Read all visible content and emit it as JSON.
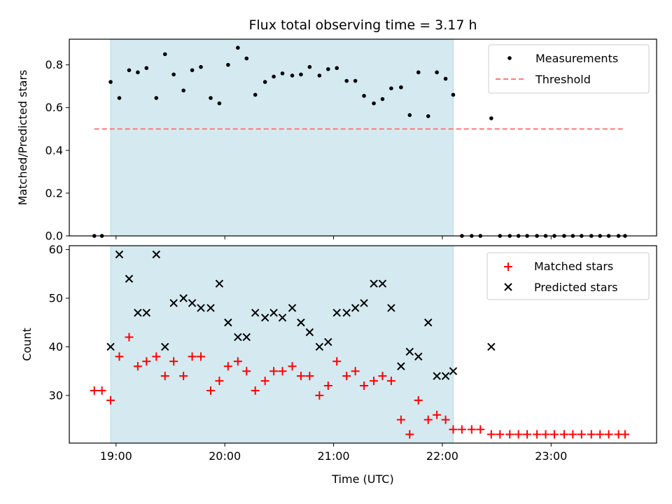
{
  "chart_data": {
    "type": "scatter",
    "title": "Flux total observing time = 3.17 h",
    "xlabel": "Time (UTC)",
    "x_ticks": [
      "19:00",
      "20:00",
      "21:00",
      "22:00",
      "23:00"
    ],
    "x_tick_hours": [
      19,
      20,
      21,
      22,
      23
    ],
    "xlim": [
      18.57,
      23.97
    ],
    "observing_window": [
      18.95,
      22.1
    ],
    "observing_window_color": "#d4eaf0",
    "panels": [
      {
        "ylabel": "Matched/Predicted stars",
        "ylim": [
          0.0,
          0.92
        ],
        "yticks": [
          0.0,
          0.2,
          0.4,
          0.6,
          0.8
        ],
        "ytick_labels": [
          "0.0",
          "0.2",
          "0.4",
          "0.6",
          "0.8"
        ],
        "legend_position": "upper right",
        "threshold": {
          "name": "Threshold",
          "value": 0.5,
          "x_range": [
            18.8,
            23.67
          ],
          "color": "#ff7a7a",
          "style": "dashed"
        },
        "series": [
          {
            "name": "Measurements",
            "marker": "dot",
            "color": "#000000",
            "x": [
              18.8,
              18.87,
              18.95,
              19.03,
              19.12,
              19.2,
              19.28,
              19.37,
              19.45,
              19.53,
              19.62,
              19.7,
              19.78,
              19.87,
              19.95,
              20.03,
              20.12,
              20.2,
              20.28,
              20.37,
              20.45,
              20.53,
              20.62,
              20.7,
              20.78,
              20.87,
              20.95,
              21.03,
              21.12,
              21.2,
              21.28,
              21.37,
              21.45,
              21.53,
              21.62,
              21.7,
              21.78,
              21.87,
              21.95,
              22.03,
              22.1,
              22.18,
              22.27,
              22.35,
              22.45,
              22.53,
              22.62,
              22.7,
              22.78,
              22.87,
              22.95,
              23.03,
              23.12,
              23.2,
              23.28,
              23.37,
              23.45,
              23.53,
              23.62,
              23.68
            ],
            "y": [
              0.0,
              0.0,
              0.72,
              0.645,
              0.775,
              0.765,
              0.785,
              0.645,
              0.85,
              0.755,
              0.68,
              0.775,
              0.79,
              0.645,
              0.62,
              0.8,
              0.88,
              0.83,
              0.66,
              0.72,
              0.745,
              0.76,
              0.75,
              0.755,
              0.79,
              0.75,
              0.78,
              0.785,
              0.725,
              0.725,
              0.655,
              0.62,
              0.64,
              0.69,
              0.695,
              0.565,
              0.765,
              0.56,
              0.765,
              0.735,
              0.66,
              0.0,
              0.0,
              0.0,
              0.55,
              0.0,
              0.0,
              0.0,
              0.0,
              0.0,
              0.0,
              0.0,
              0.0,
              0.0,
              0.0,
              0.0,
              0.0,
              0.0,
              0.0,
              0.0
            ]
          }
        ]
      },
      {
        "ylabel": "Count",
        "ylim": [
          20.2,
          60.8
        ],
        "yticks": [
          30,
          40,
          50,
          60
        ],
        "ytick_labels": [
          "30",
          "40",
          "50",
          "60"
        ],
        "legend_position": "upper right",
        "series": [
          {
            "name": "Matched stars",
            "marker": "plus",
            "color": "#ff0000",
            "x": [
              18.8,
              18.87,
              18.95,
              19.03,
              19.12,
              19.2,
              19.28,
              19.37,
              19.45,
              19.53,
              19.62,
              19.7,
              19.78,
              19.87,
              19.95,
              20.03,
              20.12,
              20.2,
              20.28,
              20.37,
              20.45,
              20.53,
              20.62,
              20.7,
              20.78,
              20.87,
              20.95,
              21.03,
              21.12,
              21.2,
              21.28,
              21.37,
              21.45,
              21.53,
              21.62,
              21.7,
              21.78,
              21.87,
              21.95,
              22.03,
              22.1,
              22.18,
              22.27,
              22.35,
              22.45,
              22.53,
              22.62,
              22.7,
              22.78,
              22.87,
              22.95,
              23.03,
              23.12,
              23.2,
              23.28,
              23.37,
              23.45,
              23.53,
              23.62,
              23.68
            ],
            "y": [
              31,
              31,
              29,
              38,
              42,
              36,
              37,
              38,
              34,
              37,
              34,
              38,
              38,
              31,
              33,
              36,
              37,
              35,
              31,
              33,
              35,
              35,
              36,
              34,
              34,
              30,
              32,
              37,
              34,
              35,
              32,
              33,
              34,
              33,
              25,
              22,
              29,
              25,
              26,
              25,
              23,
              23,
              23,
              23,
              22,
              22,
              22,
              22,
              22,
              22,
              22,
              22,
              22,
              22,
              22,
              22,
              22,
              22,
              22,
              22
            ]
          },
          {
            "name": "Predicted stars",
            "marker": "x",
            "color": "#000000",
            "x": [
              18.95,
              19.03,
              19.12,
              19.2,
              19.28,
              19.37,
              19.45,
              19.53,
              19.62,
              19.7,
              19.78,
              19.87,
              19.95,
              20.03,
              20.12,
              20.2,
              20.28,
              20.37,
              20.45,
              20.53,
              20.62,
              20.7,
              20.78,
              20.87,
              20.95,
              21.03,
              21.12,
              21.2,
              21.28,
              21.37,
              21.45,
              21.53,
              21.62,
              21.7,
              21.78,
              21.87,
              21.95,
              22.03,
              22.1,
              22.45
            ],
            "y": [
              40,
              59,
              54,
              47,
              47,
              59,
              40,
              49,
              50,
              49,
              48,
              48,
              53,
              45,
              42,
              42,
              47,
              46,
              47,
              46,
              48,
              45,
              43,
              40,
              41,
              47,
              47,
              48,
              49,
              53,
              53,
              48,
              36,
              39,
              38,
              45,
              34,
              34,
              35,
              40
            ]
          }
        ]
      }
    ]
  }
}
